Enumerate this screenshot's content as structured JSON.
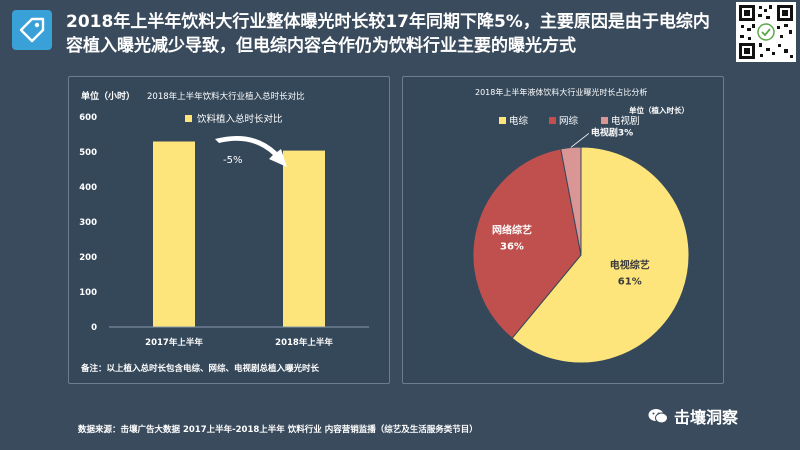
{
  "header": {
    "title": "2018年上半年饮料大行业整体曝光时长较17年同期下降5%，主要原因是由于电综内容植入曝光减少导致，但电综内容合作仍为饮料行业主要的曝光方式"
  },
  "footer": {
    "source": "数据来源：击壤广告大数据 2017上半年-2018上半年 饮料行业 内容营销监播（综艺及生活服务类节目）",
    "brand": "击壤洞察"
  },
  "colors": {
    "background": "#3a4b5d",
    "panel": "#35485a",
    "yellow": "#fde57b",
    "red": "#c0504d",
    "pink": "#d99694"
  },
  "chart_data": [
    {
      "type": "bar",
      "title": "2018年上半年饮料大行业植入总时长对比",
      "ylabel": "单位（小时）",
      "ylim": [
        0,
        600
      ],
      "yticks": [
        "0",
        "100",
        "200",
        "300",
        "400",
        "500",
        "600"
      ],
      "categories": [
        "2017年上半年",
        "2018年上半年"
      ],
      "series": [
        {
          "name": "饮料植入总时长对比",
          "values": [
            530,
            504
          ]
        }
      ],
      "annotation": "-5%",
      "note": "备注：以上植入总时长包含电综、网综、电视剧总植入曝光时长",
      "grid": false,
      "legend": "top"
    },
    {
      "type": "pie",
      "title": "2018年上半年液体饮料大行业曝光时长占比分析",
      "unit": "单位（植入时长）",
      "labels": [
        "电视综艺",
        "网络综艺",
        "电视剧"
      ],
      "legend_labels": [
        "电综",
        "网综",
        "电视剧"
      ],
      "values": [
        61,
        36,
        3
      ],
      "value_labels": [
        "61%",
        "36%",
        "3%"
      ],
      "legend": "top-left"
    }
  ]
}
